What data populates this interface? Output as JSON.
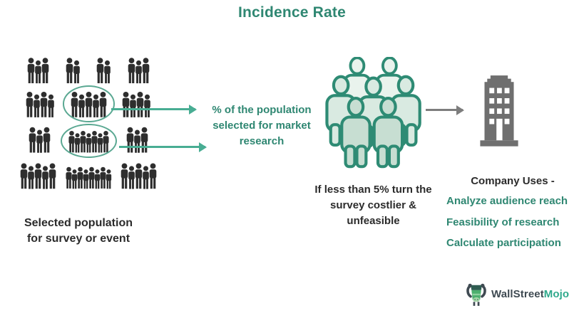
{
  "title": "Incidence Rate",
  "colors": {
    "teal_text": "#2f8772",
    "teal_arrow": "#48ad93",
    "ink": "#2b2b2b",
    "silhouette": "#2e2e2e",
    "green_group_stroke": "#2e8b74",
    "green_group_fill_light": "#e9f3ed",
    "green_group_fill_mid": "#d9eae1",
    "green_group_fill_deep": "#c7ded2",
    "building_gray": "#6f6f6f",
    "arrow_gray": "#7d7d7d",
    "logo_ink": "#3f4a52",
    "logo_teal": "#2fa98c"
  },
  "left_panel": {
    "caption_lines": [
      "Selected population",
      "for survey or event"
    ],
    "crowd_rows": [
      {
        "groups": [
          {
            "count": 3
          },
          {
            "count": 2
          },
          {
            "count": 2
          },
          {
            "count": 3
          }
        ]
      },
      {
        "groups": [
          {
            "count": 4
          },
          {
            "count": 5,
            "circled": true
          },
          {
            "count": 4
          }
        ]
      },
      {
        "groups": [
          {
            "count": 3
          },
          {
            "count": 7,
            "circled": true
          },
          {
            "count": 3
          }
        ]
      },
      {
        "groups": [
          {
            "count": 5
          },
          {
            "count": 8
          },
          {
            "count": 5
          }
        ]
      }
    ]
  },
  "population_note_lines": [
    "% of the population",
    "selected for market",
    "research"
  ],
  "middle_panel": {
    "caption_lines": [
      "If less than 5% turn the",
      "survey costlier &",
      "unfeasible"
    ],
    "group_people_count": 7
  },
  "right_panel": {
    "heading": "Company Uses -",
    "uses": [
      "Analyze audience reach",
      "Feasibility of research",
      "Calculate participation"
    ]
  },
  "logo": {
    "brand_primary": "WallStreet",
    "brand_accent": "Mojo"
  }
}
